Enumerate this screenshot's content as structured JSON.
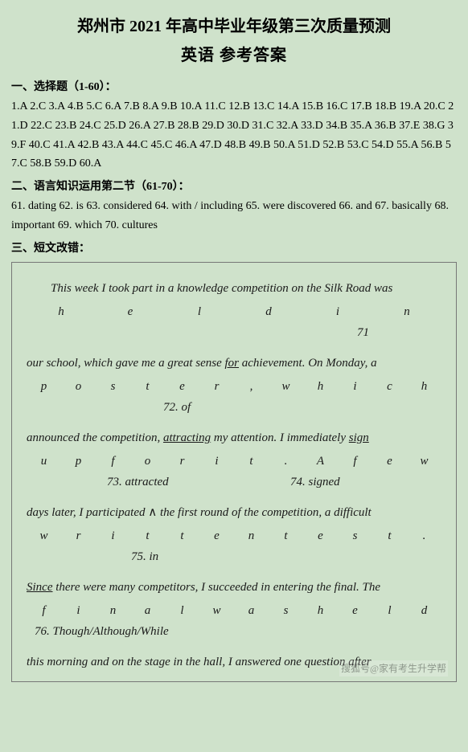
{
  "header": {
    "title1": "郑州市 2021 年高中毕业年级第三次质量预测",
    "title2": "英语  参考答案"
  },
  "section1": {
    "heading": "一、选择题（1-60）：",
    "answers": "1.A 2.C 3.A 4.B 5.C 6.A 7.B 8.A 9.B 10.A 11.C 12.B 13.C 14.A 15.B 16.C 17.B 18.B 19.A 20.C 21.D 22.C 23.B 24.C 25.D 26.A 27.B 28.B 29.D 30.D 31.C 32.A 33.D 34.B 35.A 36.B 37.E 38.G 39.F 40.C 41.A 42.B 43.A 44.C 45.C 46.A 47.D 48.B 49.B 50.A 51.D 52.B 53.C 54.D 55.A 56.B 57.C 58.B 59.D 60.A"
  },
  "section2": {
    "heading": "二、语言知识运用第二节（61-70）：",
    "answers": "61. dating 62. is 63. considered 64. with / including 65. were discovered 66. and 67. basically 68. important 69. which 70. cultures"
  },
  "section3": {
    "heading": "三、短文改错：",
    "line1_a": "This week I took part in a knowledge competition on the Silk Road was",
    "spread1": [
      "h",
      "e",
      "l",
      "d",
      "i",
      "n"
    ],
    "anno1": "71",
    "line2_a": "our school, which gave me a great sense ",
    "line2_u": "for",
    "line2_b": " achievement. On Monday, a",
    "spread2": [
      "p",
      "o",
      "s",
      "t",
      "e",
      "r",
      ",",
      "w",
      "h",
      "i",
      "c",
      "h"
    ],
    "anno2": "72. of",
    "line3_a": "announced the competition, ",
    "line3_u": "attracting",
    "line3_b": " my attention. I immediately ",
    "line3_u2": "sign",
    "spread3": [
      "u",
      "p",
      "f",
      "o",
      "r",
      "i",
      "t",
      ".",
      "A",
      "f",
      "e",
      "w"
    ],
    "anno3a": "73. attracted",
    "anno3b": "74. signed",
    "line4_a": "days later, I participated ",
    "caret": "∧",
    "line4_b": " the first round of the competition, a difficult",
    "spread4": [
      "w",
      "r",
      "i",
      "t",
      "t",
      "e",
      "n",
      "t",
      "e",
      "s",
      "t",
      "."
    ],
    "anno4": "75. in",
    "line5_u": "Since",
    "line5_a": " there were many competitors, I succeeded in entering the final. The",
    "spread5": [
      "f",
      "i",
      "n",
      "a",
      "l",
      "w",
      "a",
      "s",
      "h",
      "e",
      "l",
      "d"
    ],
    "anno5": "76. Though/Although/While",
    "line6": "this morning and on the stage in the hall, I answered one question after",
    "watermark": "搜狐号@家有考生升学帮"
  }
}
